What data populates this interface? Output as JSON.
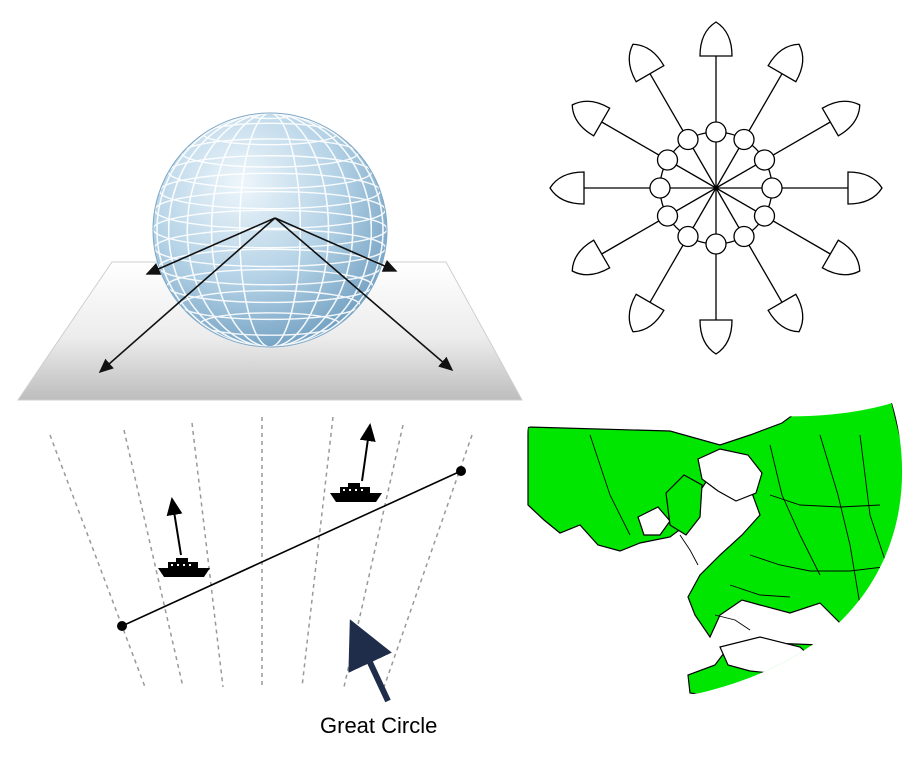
{
  "caption": {
    "great_circle": "Great Circle"
  },
  "colors": {
    "globe_fill": "#8fb8d6",
    "plane_fill": "#d9d9d9",
    "land_green": "#00e600",
    "arrow_navy": "#1f2d4a"
  },
  "icons": [
    "ship-icon",
    "arrow-icon",
    "indicatrix-ellipse-icon"
  ]
}
